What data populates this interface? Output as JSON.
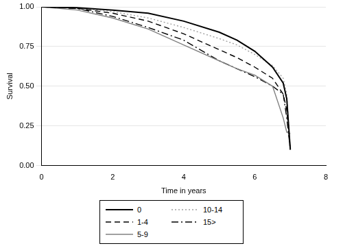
{
  "chart_data": {
    "type": "line",
    "x_label": "Time in years",
    "y_label": "Survival",
    "x": [
      0,
      1,
      2,
      3,
      4,
      5,
      5.5,
      6,
      6.5,
      6.8,
      6.9,
      7
    ],
    "series": [
      {
        "name": "0",
        "color": "#000000",
        "line_style": "solid",
        "values": [
          1,
          0.995,
          0.98,
          0.96,
          0.91,
          0.84,
          0.79,
          0.72,
          0.62,
          0.52,
          0.42,
          0.1
        ]
      },
      {
        "name": "1-4",
        "color": "#000000",
        "line_style": "dashed",
        "values": [
          1,
          0.99,
          0.96,
          0.91,
          0.83,
          0.73,
          0.68,
          0.62,
          0.55,
          0.45,
          0.35,
          0.1
        ]
      },
      {
        "name": "5-9",
        "color": "#808080",
        "line_style": "solid",
        "values": [
          1,
          0.98,
          0.93,
          0.86,
          0.76,
          0.66,
          0.61,
          0.57,
          0.5,
          0.3,
          0.21,
          0.2
        ]
      },
      {
        "name": "10-14",
        "color": "#a0a0a0",
        "line_style": "dotted",
        "values": [
          1,
          0.995,
          0.97,
          0.93,
          0.87,
          0.8,
          0.76,
          0.7,
          0.63,
          0.55,
          0.45,
          0.1
        ]
      },
      {
        "name": "15>",
        "color": "#000000",
        "line_style": "dashdot",
        "values": [
          1,
          0.99,
          0.94,
          0.87,
          0.79,
          0.66,
          0.61,
          0.56,
          0.5,
          0.45,
          0.3,
          0.1
        ]
      }
    ],
    "xlim": [
      0,
      8
    ],
    "xticks": [
      0,
      2,
      4,
      6,
      8
    ],
    "ylim": [
      0,
      1
    ],
    "yticks": [
      {
        "value": 0,
        "label": "0.00"
      },
      {
        "value": 0.25,
        "label": "0.25"
      },
      {
        "value": 0.5,
        "label": "0.50"
      },
      {
        "value": 0.75,
        "label": "0.75"
      },
      {
        "value": 1,
        "label": "1.00"
      }
    ],
    "grid": true,
    "legend": "bottom"
  }
}
